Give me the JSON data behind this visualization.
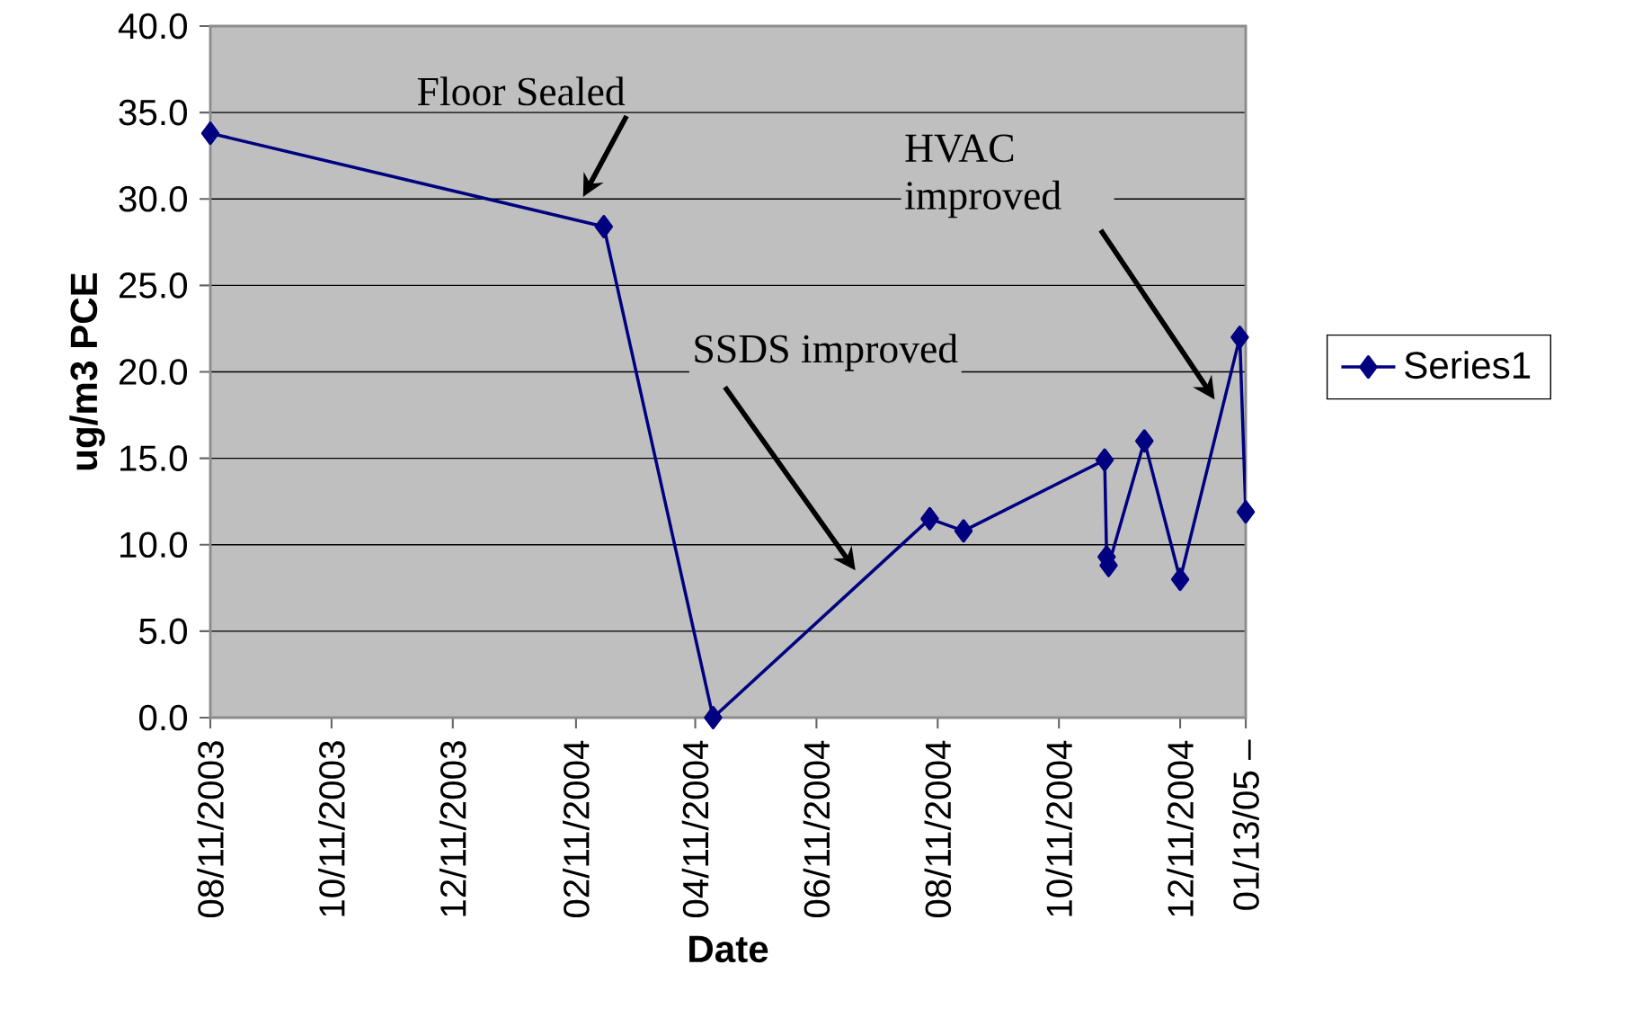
{
  "chart_data": {
    "type": "line",
    "xlabel": "Date",
    "ylabel": "ug/m3 PCE",
    "x": [
      "2003-08-11",
      "2004-02-25",
      "2004-04-20",
      "2004-08-07",
      "2004-08-24",
      "2004-11-03",
      "2004-11-04",
      "2004-11-05",
      "2004-11-23",
      "2004-12-11",
      "2005-01-10",
      "2005-01-13"
    ],
    "series": [
      {
        "name": "Series1",
        "color": "#000080",
        "values": [
          33.8,
          28.4,
          0.0,
          11.5,
          10.8,
          14.9,
          9.3,
          8.8,
          16.0,
          8.0,
          22.0,
          11.9
        ]
      }
    ],
    "xlim": [
      "2003-08-11",
      "2005-01-13"
    ],
    "xticks": [
      {
        "value": "2003-08-11",
        "label": "08/11/2003"
      },
      {
        "value": "2003-10-11",
        "label": "10/11/2003"
      },
      {
        "value": "2003-12-11",
        "label": "12/11/2003"
      },
      {
        "value": "2004-02-11",
        "label": "02/11/2004"
      },
      {
        "value": "2004-04-11",
        "label": "04/11/2004"
      },
      {
        "value": "2004-06-11",
        "label": "06/11/2004"
      },
      {
        "value": "2004-08-11",
        "label": "08/11/2004"
      },
      {
        "value": "2004-10-11",
        "label": "10/11/2004"
      },
      {
        "value": "2004-12-11",
        "label": "12/11/2004"
      },
      {
        "value": "2005-01-13",
        "label": "01/13/05 –"
      }
    ],
    "ylim": [
      0,
      40
    ],
    "yticks": [
      {
        "value": 0,
        "label": "0.0"
      },
      {
        "value": 5,
        "label": "5.0"
      },
      {
        "value": 10,
        "label": "10.0"
      },
      {
        "value": 15,
        "label": "15.0"
      },
      {
        "value": 20,
        "label": "20.0"
      },
      {
        "value": 25,
        "label": "25.0"
      },
      {
        "value": 30,
        "label": "30.0"
      },
      {
        "value": 35,
        "label": "35.0"
      },
      {
        "value": 40,
        "label": "40.0"
      }
    ],
    "annotations": [
      "Floor Sealed",
      "SSDS improved",
      "HVAC improved"
    ],
    "grid": "y",
    "legend": "right",
    "marker": "diamond",
    "line_style": "solid"
  }
}
